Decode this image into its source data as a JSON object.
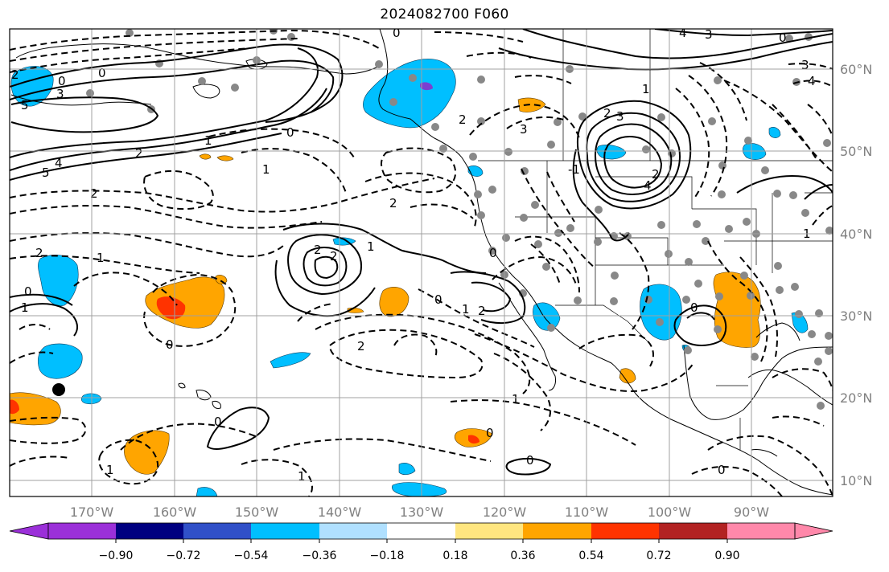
{
  "title": "2024082700 F060",
  "map": {
    "lon_labels": [
      "170°W",
      "160°W",
      "150°W",
      "140°W",
      "130°W",
      "120°W",
      "110°W",
      "100°W",
      "90°W"
    ],
    "lat_labels": [
      "60°N",
      "50°N",
      "40°N",
      "30°N",
      "20°N",
      "10°N"
    ],
    "contour_labels": [
      "0",
      "1",
      "2",
      "3",
      "4",
      "5",
      "-1",
      "-2",
      "-3"
    ]
  },
  "colorbar": {
    "tick_labels": [
      "−0.90",
      "−0.72",
      "−0.54",
      "−0.36",
      "−0.18",
      "0.18",
      "0.36",
      "0.54",
      "0.72",
      "0.90"
    ],
    "colors": [
      "#9b30d9",
      "#000080",
      "#3050c8",
      "#00bfff",
      "#b0e0ff",
      "#ffffff",
      "#ffe680",
      "#ffa500",
      "#ff3300",
      "#b22222",
      "#ff88aa"
    ]
  },
  "colors": {
    "negative_shade": "#00bfff",
    "positive_shade": "#ffa500",
    "strong_positive": "#ff3300",
    "strong_negative": "#7b3fd0",
    "station_dot": "#888888",
    "grid": "#a0a0a0"
  }
}
